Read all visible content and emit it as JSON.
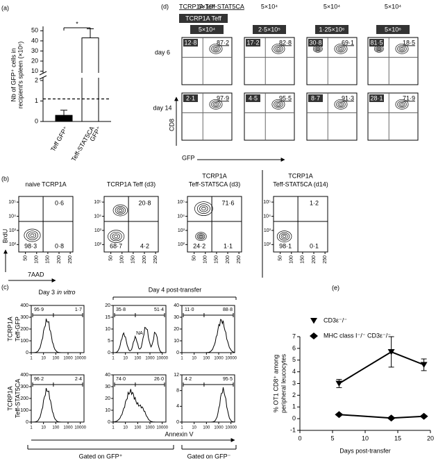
{
  "panel_a": {
    "label": "(a)",
    "y_label": [
      "Nb of GFP⁺ cells in",
      "recipient's spleen (×10⁶)"
    ],
    "categories": [
      [
        "Teff GFP⁺"
      ],
      [
        "Teff-STAT5CA",
        "GFP⁺"
      ]
    ],
    "values": [
      0.3,
      43
    ],
    "errors": [
      0.25,
      9
    ],
    "colors": [
      "#000000",
      "#ffffff"
    ],
    "reference_line": 1.1,
    "significance": "*",
    "ylim_lower": [
      0,
      2.1
    ],
    "yticks_lower": [
      0,
      1,
      2
    ],
    "ylim_upper": [
      9,
      53
    ],
    "yticks_upper": [
      10,
      20,
      30,
      40,
      50
    ]
  },
  "panel_d": {
    "label": "(d)",
    "group_label": "TCRP1A Teff-STAT5CA",
    "ref_label": "TCRP1A Teff",
    "top_doses": [
      "5×10⁴",
      "5×10⁴",
      "5×10⁴",
      "5×10⁴"
    ],
    "teff_doses": [
      "5×10⁴",
      "2·5×10⁵",
      "1·25×10⁶",
      "5×10⁶"
    ],
    "rows": [
      {
        "label": "day 6",
        "plots": [
          [
            "12·8",
            "87·2"
          ],
          [
            "17·2",
            "82·8"
          ],
          [
            "30·8",
            "69·1"
          ],
          [
            "81·5",
            "18·5"
          ]
        ]
      },
      {
        "label": "day 14",
        "plots": [
          [
            "2·1",
            "97·9"
          ],
          [
            "4·5",
            "95·5"
          ],
          [
            "8·7",
            "91·3"
          ],
          [
            "28·1",
            "71·9"
          ]
        ]
      }
    ],
    "y_axis": "CD8",
    "x_axis": "GFP"
  },
  "panel_b": {
    "label": "(b)",
    "plots": [
      {
        "title": [
          "naive TCRP1A"
        ],
        "top_right": "0·6",
        "bottom_left": "98·3",
        "bottom_right": "0·8"
      },
      {
        "title": [
          "TCRP1A Teff (d3)"
        ],
        "top_right": "20·8",
        "bottom_left": "68·7",
        "bottom_right": "4·2"
      },
      {
        "title": [
          "TCRP1A",
          "Teff-STAT5CA (d3)"
        ],
        "top_right": "71·6",
        "bottom_left": "24·2",
        "bottom_right": "1·1"
      },
      {
        "title": [
          "TCRP1A",
          "Teff-STAT5CA (d14)"
        ],
        "top_right": "1·2",
        "bottom_left": "98·1",
        "bottom_right": "0·1"
      }
    ],
    "xlim": [
      20,
      262
    ],
    "xticks": [
      50,
      100,
      150,
      200,
      250
    ],
    "ylim": [
      30,
      250000
    ],
    "yticks": [
      {
        "value": 100,
        "label": "10²"
      },
      {
        "value": 1000,
        "label": "10³"
      },
      {
        "value": 10000,
        "label": "10⁴"
      },
      {
        "value": 100000,
        "label": "10⁵"
      }
    ],
    "y_axis": "BrdU",
    "x_axis": "7AAD"
  },
  "panel_c": {
    "label": "(c)",
    "header_1": [
      "Day 3",
      "in vitro"
    ],
    "header_2": "Day 4 post-transfer",
    "rows": [
      {
        "label": [
          "TCRP1A",
          "Teff-GFP"
        ],
        "plots": [
          {
            "ylim": [
              0,
              400
            ],
            "yticks": [
              0,
              100,
              200,
              300,
              400
            ],
            "left": "95·9",
            "right": "1·7"
          },
          {
            "ylim": [
              0,
              20
            ],
            "yticks": [
              0,
              5,
              10,
              15,
              20
            ],
            "left": "35·8",
            "right": "51·4"
          },
          {
            "ylim": [
              0,
              40
            ],
            "yticks": [
              0,
              10,
              20,
              30,
              40
            ],
            "left": "11·0",
            "right": "88·8"
          }
        ]
      },
      {
        "label": [
          "TCRP1A",
          "Teff-STAT5CA"
        ],
        "plots": [
          {
            "ylim": [
              0,
              400
            ],
            "yticks": [
              0,
              100,
              200,
              300,
              400
            ],
            "left": "96·2",
            "right": "2·4"
          },
          {
            "ylim": [
              0,
              40
            ],
            "yticks": [
              0,
              10,
              20,
              30,
              40
            ],
            "left": "74·0",
            "right": "26·0"
          },
          {
            "ylim": [
              0,
              12
            ],
            "yticks": [
              0,
              4,
              8,
              12
            ],
            "left": "4·2",
            "right": "95·5"
          }
        ]
      }
    ],
    "marker": "NA",
    "xlim": [
      1,
      20000
    ],
    "xticks": [
      1,
      10,
      100,
      1000,
      10000
    ],
    "log_x": true,
    "x_axis": "Annexin V",
    "gates": [
      "Gated on GFP⁺",
      "Gated on GFP⁻"
    ]
  },
  "panel_e": {
    "label": "(e)",
    "x_label": "Days post-transfer",
    "y_label": [
      "% OT1 CD8⁺ among",
      "peripheral leucocytes"
    ],
    "x": [
      6,
      14,
      19
    ],
    "xlim": [
      0,
      20
    ],
    "xticks": [
      0,
      5,
      10,
      15,
      20
    ],
    "ylim": [
      -1,
      7
    ],
    "yticks": [
      -1,
      0,
      1,
      2,
      3,
      4,
      5,
      6,
      7
    ],
    "series": [
      {
        "name": "CD3ε⁻/⁻",
        "color": "#000000",
        "marker": "triangle",
        "values": [
          3.0,
          5.7,
          4.6
        ],
        "errors": [
          0.35,
          1.3,
          0.5
        ]
      },
      {
        "name": "MHC class I⁻/⁻ CD3ε⁻/⁻",
        "color": "#000000",
        "marker": "diamond",
        "values": [
          0.35,
          0.05,
          0.2
        ]
      }
    ]
  }
}
